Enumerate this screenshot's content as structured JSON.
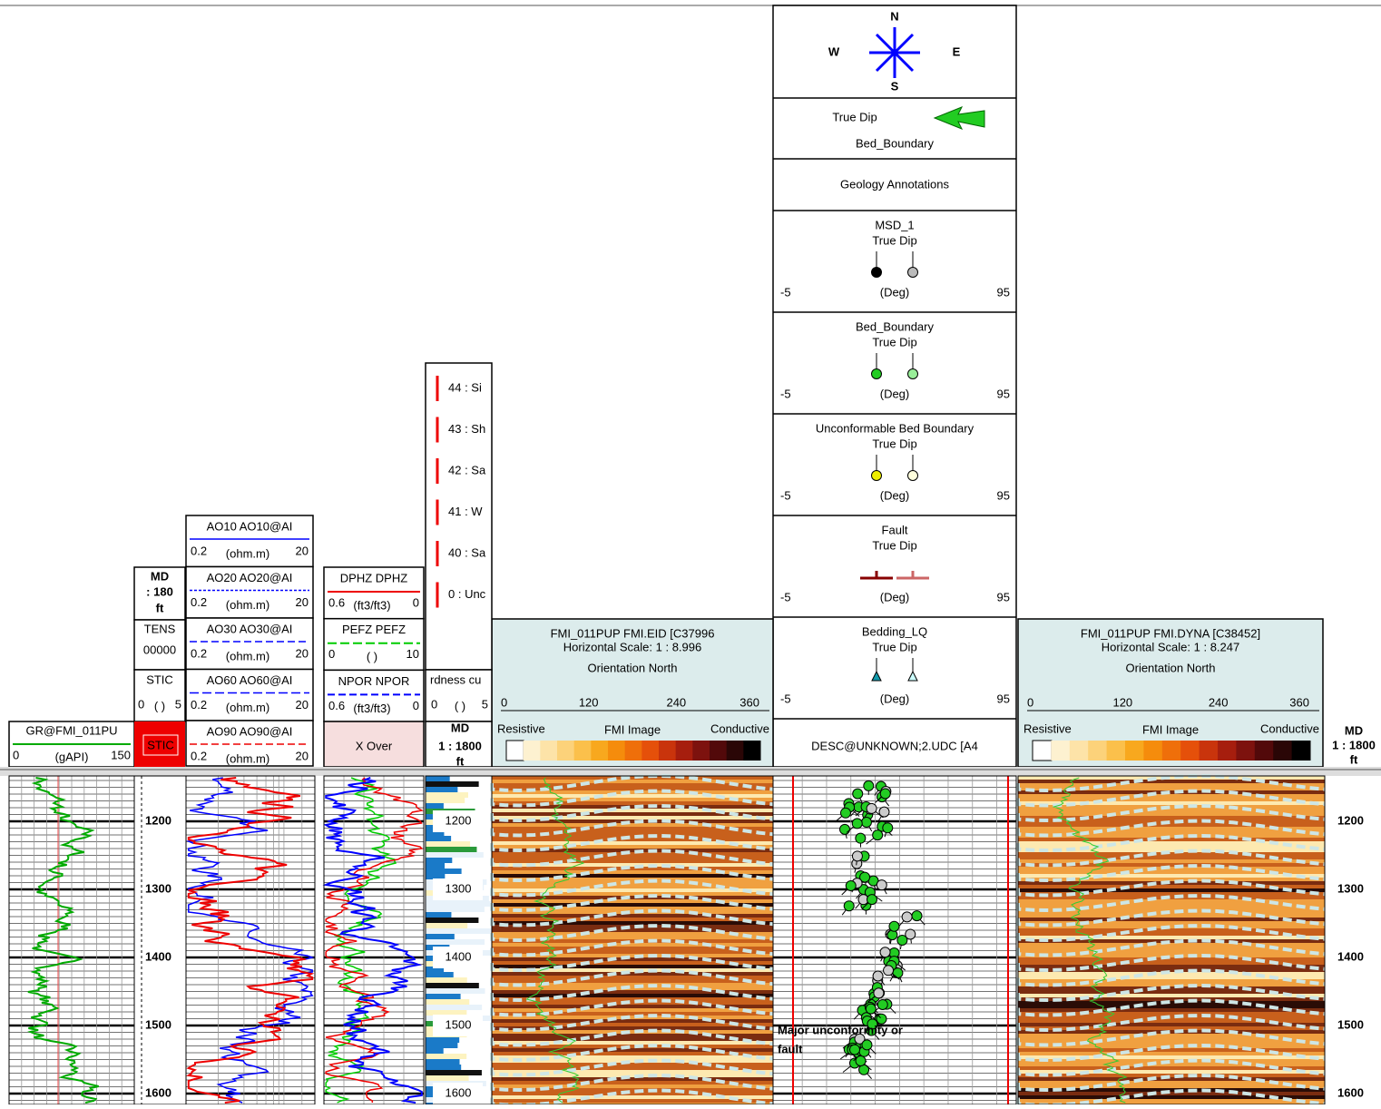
{
  "compass": {
    "n": "N",
    "s": "S",
    "w": "W",
    "e": "E"
  },
  "true_dip_legend": {
    "label": "True Dip",
    "sub": "Bed_Boundary"
  },
  "geology_annotations": "Geology Annotations",
  "dip_headers": [
    {
      "name": "MSD_1",
      "sub": "True Dip",
      "min": "-5",
      "unit": "(Deg)",
      "max": "95"
    },
    {
      "name": "Bed_Boundary",
      "sub": "True Dip",
      "min": "-5",
      "unit": "(Deg)",
      "max": "95"
    },
    {
      "name": "Unconformable Bed Boundary",
      "sub": "True Dip",
      "min": "-5",
      "unit": "(Deg)",
      "max": "95"
    },
    {
      "name": "Fault",
      "sub": "True Dip",
      "min": "-5",
      "unit": "(Deg)",
      "max": "95"
    },
    {
      "name": "Bedding_LQ",
      "sub": "True Dip",
      "min": "-5",
      "unit": "(Deg)",
      "max": "95"
    }
  ],
  "desc_header": "DESC@UNKNOWN;2.UDC [A4",
  "fmi_headers": [
    {
      "title": "FMI_011PUP FMI.EID [C37996",
      "scale": "Horizontal Scale: 1 : 8.996",
      "orientation": "Orientation North",
      "ticks": [
        "0",
        "120",
        "240",
        "360"
      ],
      "left": "Resistive",
      "center": "FMI Image",
      "right": "Conductive"
    },
    {
      "title": "FMI_011PUP FMI.DYNA [C38452]",
      "scale": "Horizontal Scale: 1 : 8.247",
      "orientation": "Orientation North",
      "ticks": [
        "0",
        "120",
        "240",
        "360"
      ],
      "left": "Resistive",
      "center": "FMI Image",
      "right": "Conductive"
    }
  ],
  "gr_header": {
    "name": "GR@FMI_011PU",
    "min": "0",
    "unit": "(gAPI)",
    "max": "150"
  },
  "md_left": {
    "label": "MD",
    "scale": ": 180",
    "unit": "ft"
  },
  "tens_header": {
    "name": "TENS",
    "value": "00000"
  },
  "stic_header": {
    "name": "STIC",
    "min": "0",
    "unit": "( )",
    "max": "5"
  },
  "stic_fill": "STIC",
  "resistivity_headers": [
    {
      "name": "AO10 AO10@AI",
      "min": "0.2",
      "unit": "(ohm.m)",
      "max": "20"
    },
    {
      "name": "AO20 AO20@AI",
      "min": "0.2",
      "unit": "(ohm.m)",
      "max": "20"
    },
    {
      "name": "AO30 AO30@AI",
      "min": "0.2",
      "unit": "(ohm.m)",
      "max": "20"
    },
    {
      "name": "AO60 AO60@AI",
      "min": "0.2",
      "unit": "(ohm.m)",
      "max": "20"
    },
    {
      "name": "AO90 AO90@AI",
      "min": "0.2",
      "unit": "(ohm.m)",
      "max": "20"
    }
  ],
  "porosity_headers": [
    {
      "name": "DPHZ DPHZ",
      "min": "0.6",
      "unit": "(ft3/ft3)",
      "max": "0"
    },
    {
      "name": "PEFZ PEFZ",
      "min": "0",
      "unit": "( )",
      "max": "10"
    },
    {
      "name": "NPOR NPOR",
      "min": "0.6",
      "unit": "(ft3/ft3)",
      "max": "0"
    }
  ],
  "xover": "X Over",
  "lith_legend": [
    "44 : Si",
    "43 : Sh",
    "42 : Sa",
    "41 : W",
    "40 : Sa",
    "0 : Unc"
  ],
  "hardness": {
    "name": "rdness cu",
    "min": "0",
    "unit": "( )",
    "max": "5"
  },
  "md_lith": {
    "label": "MD",
    "scale": "1 : 1800",
    "unit": "ft"
  },
  "md_right": {
    "label": "MD",
    "scale": "1 : 1800",
    "unit": "ft"
  },
  "depths": [
    "1200",
    "1300",
    "1400",
    "1500",
    "1600"
  ],
  "annotation": [
    "Major unconformity or",
    "fault"
  ]
}
